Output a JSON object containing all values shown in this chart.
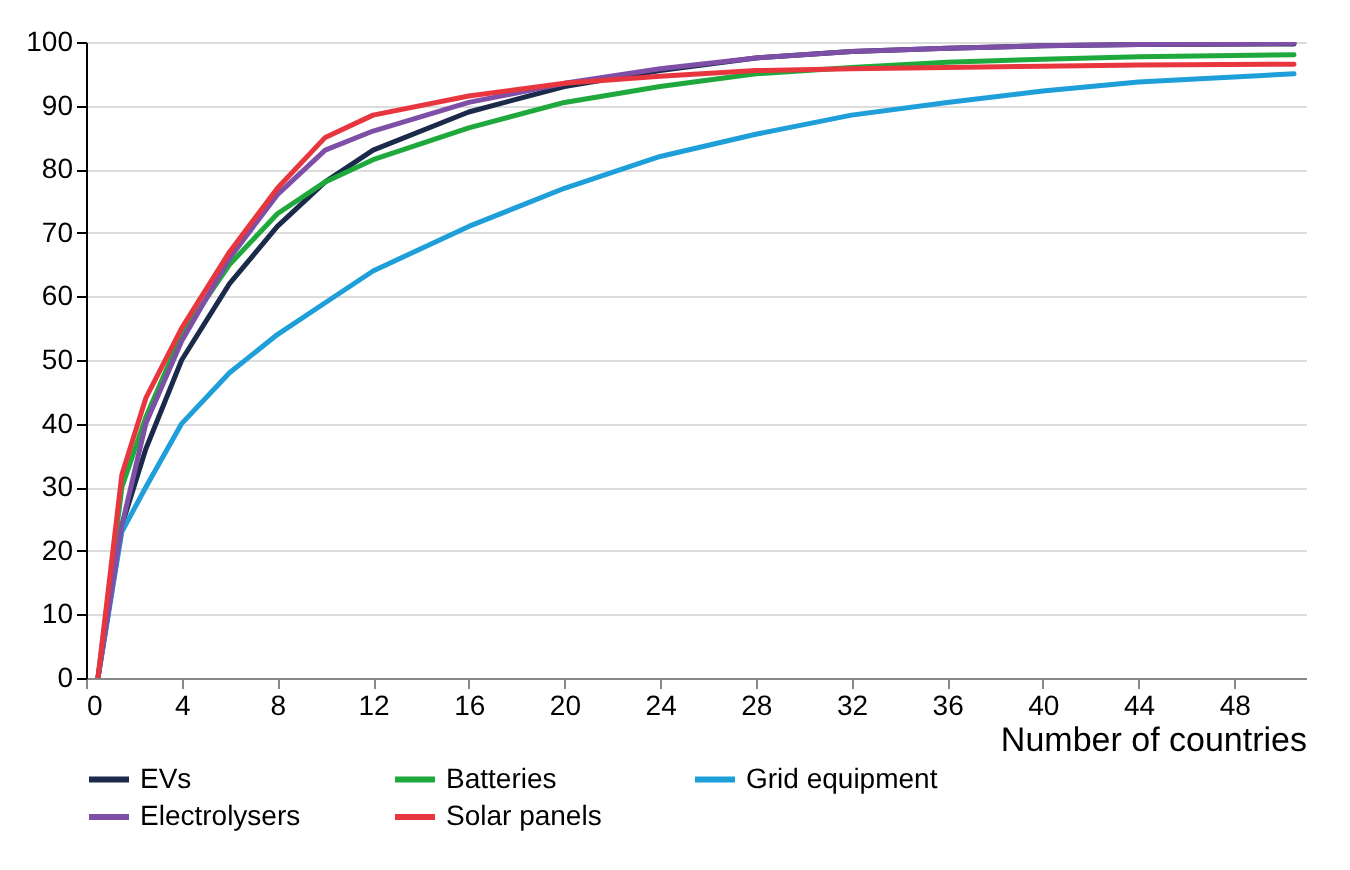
{
  "chart_data": {
    "type": "line",
    "xlabel": "Number of countries",
    "x": [
      0.5,
      1.5,
      2.5,
      4,
      6,
      8,
      10,
      12,
      16,
      20,
      24,
      28,
      32,
      36,
      40,
      44,
      50.5
    ],
    "series": [
      {
        "name": "EVs",
        "color": "#1b2a4a",
        "values": [
          0,
          24,
          36,
          50,
          62,
          71,
          78,
          83,
          89,
          93,
          95.5,
          97.5,
          98.5,
          99,
          99.4,
          99.6,
          99.7
        ]
      },
      {
        "name": "Batteries",
        "color": "#1fa83c",
        "values": [
          0,
          30,
          41,
          54,
          65,
          73,
          78,
          81.5,
          86.5,
          90.5,
          93,
          95,
          96,
          96.8,
          97.3,
          97.7,
          98
        ]
      },
      {
        "name": "Grid equipment",
        "color": "#1e9fd9",
        "values": [
          0,
          23,
          30,
          40,
          48,
          54,
          59,
          64,
          71,
          77,
          82,
          85.5,
          88.5,
          90.5,
          92.3,
          93.7,
          95
        ]
      },
      {
        "name": "Electrolysers",
        "color": "#7e4fa6",
        "values": [
          0,
          24,
          40,
          53,
          66,
          76,
          83,
          86,
          90.5,
          93.5,
          95.8,
          97.5,
          98.5,
          99,
          99.4,
          99.6,
          99.8
        ]
      },
      {
        "name": "Solar panels",
        "color": "#e8363f",
        "values": [
          0,
          32,
          44,
          55,
          67,
          77,
          85,
          88.5,
          91.5,
          93.5,
          94.6,
          95.5,
          95.8,
          96,
          96.2,
          96.4,
          96.5
        ]
      }
    ],
    "xlim": [
      0,
      51
    ],
    "xticks": [
      0,
      4,
      8,
      12,
      16,
      20,
      24,
      28,
      32,
      36,
      40,
      44,
      48
    ],
    "ylim": [
      0,
      100
    ],
    "yticks": [
      0,
      10,
      20,
      30,
      40,
      50,
      60,
      70,
      80,
      90,
      100
    ],
    "grid": "y",
    "legend": "bottom"
  }
}
